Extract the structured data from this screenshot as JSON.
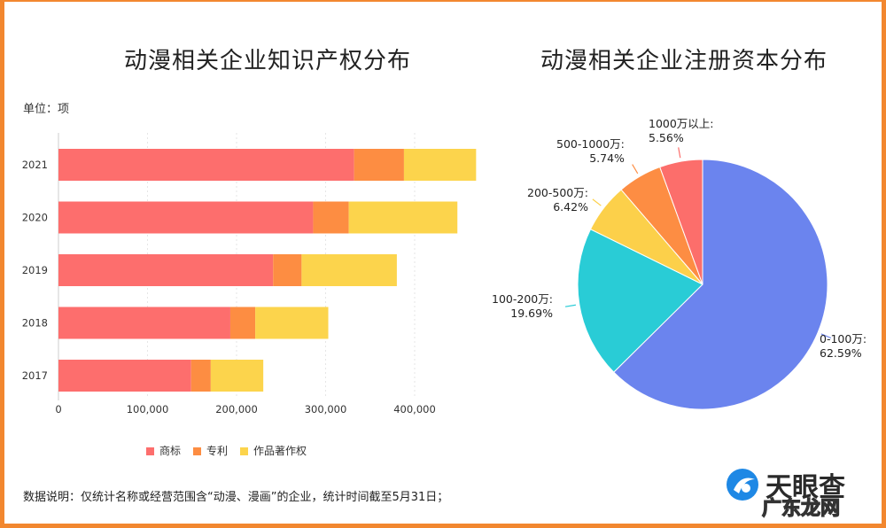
{
  "charts_titles": {
    "left": "动漫相关企业知识产权分布",
    "right": "动漫相关企业注册资本分布"
  },
  "unit": "单位：项",
  "note": "数据说明：仅统计名称或经营范围含“动漫、漫画”的企业，统计时间截至5月31日；",
  "logo": {
    "text": "天眼查",
    "watermark": "广东龙网"
  },
  "chart_data": [
    {
      "type": "bar",
      "orientation": "horizontal",
      "stacked": true,
      "title": "动漫相关企业知识产权分布",
      "categories": [
        "2021",
        "2020",
        "2019",
        "2018",
        "2017"
      ],
      "series": [
        {
          "name": "商标",
          "color": "#fd6e6d",
          "values": [
            332000,
            286000,
            241000,
            193000,
            149000
          ]
        },
        {
          "name": "专利",
          "color": "#fd8d42",
          "values": [
            56000,
            40000,
            32000,
            28000,
            22000
          ]
        },
        {
          "name": "作品著作权",
          "color": "#fcd44c",
          "values": [
            81000,
            122000,
            107000,
            82000,
            59000
          ]
        }
      ],
      "xlim": [
        0,
        450000
      ],
      "xticks": [
        "0",
        "100,000",
        "200,000",
        "300,000",
        "400,000"
      ],
      "grid": true,
      "legend": "bottom"
    },
    {
      "type": "pie",
      "title": "动漫相关企业注册资本分布",
      "slices": [
        {
          "label": "0-100万:",
          "value": 62.59,
          "text": "62.59%",
          "color": "#6b84ee"
        },
        {
          "label": "100-200万:",
          "value": 19.69,
          "text": "19.69%",
          "color": "#29ccd6"
        },
        {
          "label": "200-500万:",
          "value": 6.42,
          "text": "6.42%",
          "color": "#fcd04a"
        },
        {
          "label": "500-1000万:",
          "value": 5.74,
          "text": "5.74%",
          "color": "#fd8d43"
        },
        {
          "label": "1000万以上:",
          "value": 5.56,
          "text": "5.56%",
          "color": "#fc6e6b"
        }
      ]
    }
  ]
}
